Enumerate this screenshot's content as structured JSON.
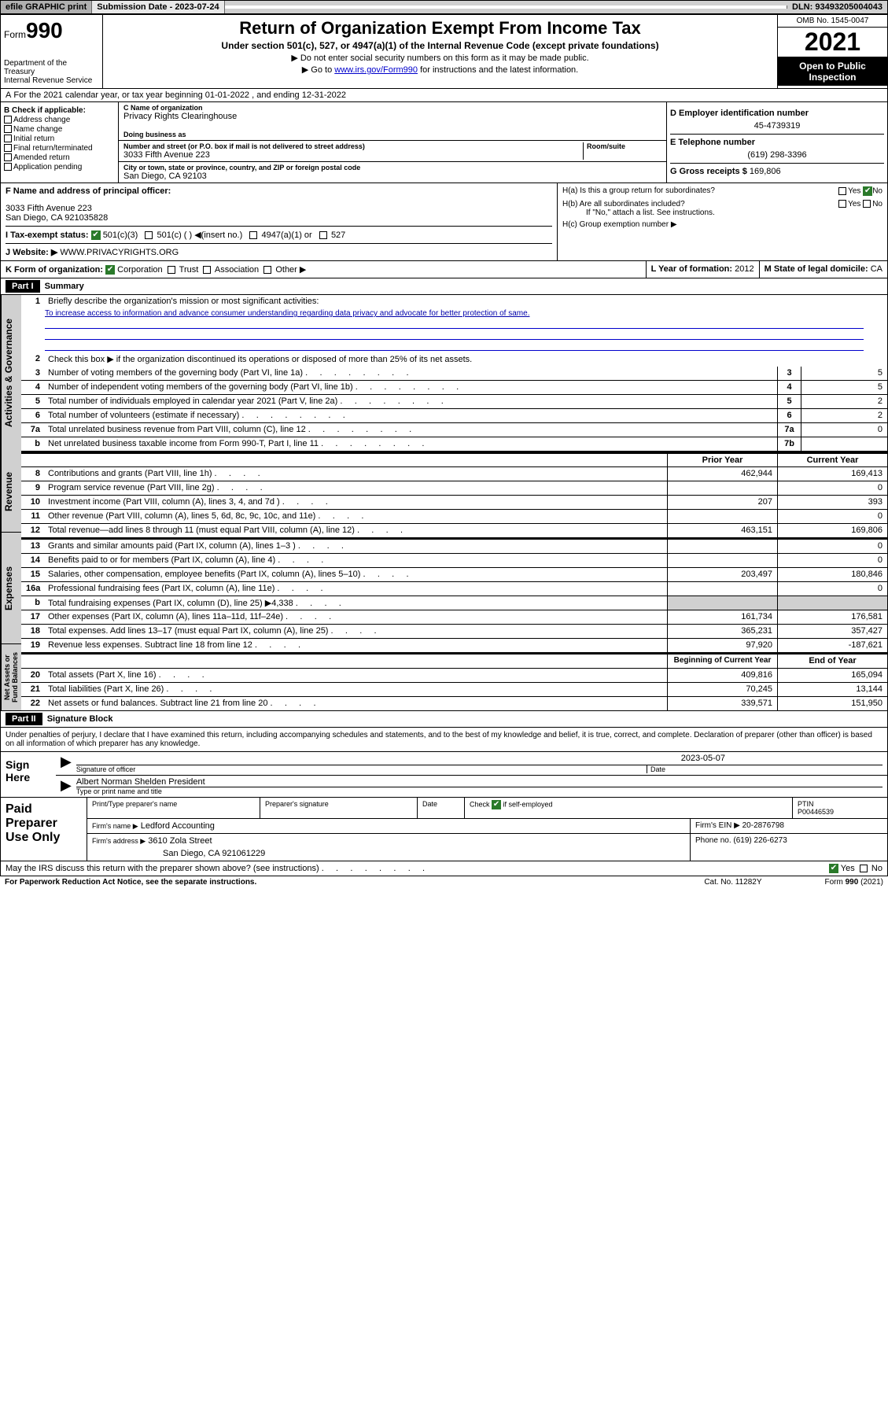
{
  "topbar": {
    "efile": "efile GRAPHIC print",
    "sub_label": "Submission Date - 2023-07-24",
    "dln": "DLN: 93493205004043"
  },
  "header": {
    "form_prefix": "Form",
    "form_num": "990",
    "dept": "Department of the Treasury\nInternal Revenue Service",
    "title": "Return of Organization Exempt From Income Tax",
    "subtitle": "Under section 501(c), 527, or 4947(a)(1) of the Internal Revenue Code (except private foundations)",
    "note1": "▶ Do not enter social security numbers on this form as it may be made public.",
    "note2_pre": "▶ Go to ",
    "note2_link": "www.irs.gov/Form990",
    "note2_post": " for instructions and the latest information.",
    "omb": "OMB No. 1545-0047",
    "year": "2021",
    "open": "Open to Public Inspection"
  },
  "rowA": {
    "label": "A",
    "text": "For the 2021 calendar year, or tax year beginning 01-01-2022   , and ending 12-31-2022"
  },
  "colB": {
    "hdr": "B Check if applicable:",
    "items": [
      "Address change",
      "Name change",
      "Initial return",
      "Final return/terminated",
      "Amended return",
      "Application pending"
    ]
  },
  "colC": {
    "name_lbl": "C Name of organization",
    "name": "Privacy Rights Clearinghouse",
    "dba_lbl": "Doing business as",
    "dba": "",
    "addr_lbl": "Number and street (or P.O. box if mail is not delivered to street address)",
    "room_lbl": "Room/suite",
    "addr": "3033 Fifth Avenue 223",
    "city_lbl": "City or town, state or province, country, and ZIP or foreign postal code",
    "city": "San Diego, CA  92103"
  },
  "colD": {
    "ein_lbl": "D Employer identification number",
    "ein": "45-4739319",
    "tel_lbl": "E Telephone number",
    "tel": "(619) 298-3396",
    "gross_lbl": "G Gross receipts $",
    "gross": "169,806"
  },
  "rowF": {
    "lbl": "F  Name and address of principal officer:",
    "name": "",
    "addr1": "3033 Fifth Avenue 223",
    "addr2": "San Diego, CA  921035828"
  },
  "rowH": {
    "ha": "H(a)  Is this a group return for subordinates?",
    "hb": "H(b)  Are all subordinates included?",
    "hb_note": "If \"No,\" attach a list. See instructions.",
    "hc": "H(c)  Group exemption number ▶"
  },
  "rowI": {
    "lbl": "I   Tax-exempt status:",
    "opts": [
      "501(c)(3)",
      "501(c) (  ) ◀(insert no.)",
      "4947(a)(1) or",
      "527"
    ]
  },
  "rowJ": {
    "lbl": "J   Website: ▶",
    "val": "WWW.PRIVACYRIGHTS.ORG"
  },
  "rowK": {
    "lbl": "K Form of organization:",
    "opts": [
      "Corporation",
      "Trust",
      "Association",
      "Other ▶"
    ]
  },
  "rowL": {
    "lbl": "L Year of formation:",
    "val": "2012"
  },
  "rowM": {
    "lbl": "M State of legal domicile:",
    "val": "CA"
  },
  "part1": {
    "hdr": "Part I",
    "title": "Summary",
    "q1": "Briefly describe the organization's mission or most significant activities:",
    "mission": "To increase access to information and advance consumer understanding regarding data privacy and advocate for better protection of same.",
    "q2": "Check this box ▶     if the organization discontinued its operations or disposed of more than 25% of its net assets.",
    "rows_a": [
      {
        "n": "3",
        "t": "Number of voting members of the governing body (Part VI, line 1a)",
        "an": "3",
        "av": "5"
      },
      {
        "n": "4",
        "t": "Number of independent voting members of the governing body (Part VI, line 1b)",
        "an": "4",
        "av": "5"
      },
      {
        "n": "5",
        "t": "Total number of individuals employed in calendar year 2021 (Part V, line 2a)",
        "an": "5",
        "av": "2"
      },
      {
        "n": "6",
        "t": "Total number of volunteers (estimate if necessary)",
        "an": "6",
        "av": "2"
      },
      {
        "n": "7a",
        "t": "Total unrelated business revenue from Part VIII, column (C), line 12",
        "an": "7a",
        "av": "0"
      },
      {
        "n": "b",
        "t": "Net unrelated business taxable income from Form 990-T, Part I, line 11",
        "an": "7b",
        "av": ""
      }
    ],
    "col_prior": "Prior Year",
    "col_curr": "Current Year",
    "rows_rev": [
      {
        "n": "8",
        "t": "Contributions and grants (Part VIII, line 1h)",
        "p": "462,944",
        "c": "169,413"
      },
      {
        "n": "9",
        "t": "Program service revenue (Part VIII, line 2g)",
        "p": "",
        "c": "0"
      },
      {
        "n": "10",
        "t": "Investment income (Part VIII, column (A), lines 3, 4, and 7d )",
        "p": "207",
        "c": "393"
      },
      {
        "n": "11",
        "t": "Other revenue (Part VIII, column (A), lines 5, 6d, 8c, 9c, 10c, and 11e)",
        "p": "",
        "c": "0"
      },
      {
        "n": "12",
        "t": "Total revenue—add lines 8 through 11 (must equal Part VIII, column (A), line 12)",
        "p": "463,151",
        "c": "169,806"
      }
    ],
    "rows_exp": [
      {
        "n": "13",
        "t": "Grants and similar amounts paid (Part IX, column (A), lines 1–3 )",
        "p": "",
        "c": "0"
      },
      {
        "n": "14",
        "t": "Benefits paid to or for members (Part IX, column (A), line 4)",
        "p": "",
        "c": "0"
      },
      {
        "n": "15",
        "t": "Salaries, other compensation, employee benefits (Part IX, column (A), lines 5–10)",
        "p": "203,497",
        "c": "180,846"
      },
      {
        "n": "16a",
        "t": "Professional fundraising fees (Part IX, column (A), line 11e)",
        "p": "",
        "c": "0"
      },
      {
        "n": "b",
        "t": "Total fundraising expenses (Part IX, column (D), line 25) ▶4,338",
        "p": "shade",
        "c": "shade"
      },
      {
        "n": "17",
        "t": "Other expenses (Part IX, column (A), lines 11a–11d, 11f–24e)",
        "p": "161,734",
        "c": "176,581"
      },
      {
        "n": "18",
        "t": "Total expenses. Add lines 13–17 (must equal Part IX, column (A), line 25)",
        "p": "365,231",
        "c": "357,427"
      },
      {
        "n": "19",
        "t": "Revenue less expenses. Subtract line 18 from line 12",
        "p": "97,920",
        "c": "-187,621"
      }
    ],
    "col_begin": "Beginning of Current Year",
    "col_end": "End of Year",
    "rows_net": [
      {
        "n": "20",
        "t": "Total assets (Part X, line 16)",
        "p": "409,816",
        "c": "165,094"
      },
      {
        "n": "21",
        "t": "Total liabilities (Part X, line 26)",
        "p": "70,245",
        "c": "13,144"
      },
      {
        "n": "22",
        "t": "Net assets or fund balances. Subtract line 21 from line 20",
        "p": "339,571",
        "c": "151,950"
      }
    ]
  },
  "vert_labels": {
    "gov": "Activities & Governance",
    "rev": "Revenue",
    "exp": "Expenses",
    "net": "Net Assets or Fund Balances"
  },
  "part2": {
    "hdr": "Part II",
    "title": "Signature Block",
    "penalty": "Under penalties of perjury, I declare that I have examined this return, including accompanying schedules and statements, and to the best of my knowledge and belief, it is true, correct, and complete. Declaration of preparer (other than officer) is based on all information of which preparer has any knowledge.",
    "sign_here": "Sign Here",
    "sig_officer": "Signature of officer",
    "sig_date": "Date",
    "sig_date_val": "2023-05-07",
    "officer_name": "Albert Norman Shelden  President",
    "officer_type_lbl": "Type or print name and title",
    "paid": "Paid Preparer Use Only",
    "prep_name_lbl": "Print/Type preparer's name",
    "prep_sig_lbl": "Preparer's signature",
    "prep_date_lbl": "Date",
    "prep_check": "Check         if self-employed",
    "ptin_lbl": "PTIN",
    "ptin": "P00446539",
    "firm_name_lbl": "Firm's name    ▶",
    "firm_name": "Ledford Accounting",
    "firm_ein_lbl": "Firm's EIN ▶",
    "firm_ein": "20-2876798",
    "firm_addr_lbl": "Firm's address ▶",
    "firm_addr1": "3610 Zola Street",
    "firm_addr2": "San Diego, CA  921061229",
    "firm_phone_lbl": "Phone no.",
    "firm_phone": "(619) 226-6273",
    "may_irs": "May the IRS discuss this return with the preparer shown above? (see instructions)"
  },
  "footer": {
    "left": "For Paperwork Reduction Act Notice, see the separate instructions.",
    "mid": "Cat. No. 11282Y",
    "right": "Form 990 (2021)"
  }
}
